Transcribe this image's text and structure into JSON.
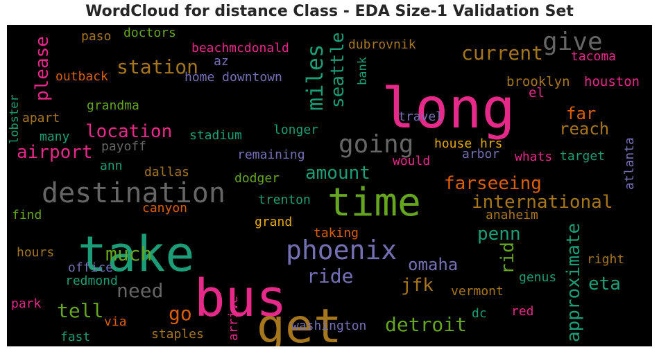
{
  "title": "WordCloud for distance Class - EDA Size-1 Validation Set",
  "palette": {
    "pink": "#e7298a",
    "green": "#1b9e77",
    "olive": "#66a61e",
    "gold": "#a6761d",
    "purple": "#7570b3",
    "orange": "#d95f02",
    "gray": "#666666",
    "yellow": "#e6ab02",
    "background": "#000000"
  },
  "chart_data": {
    "type": "wordcloud",
    "words": [
      {
        "text": "long",
        "size": 80,
        "color": "pink"
      },
      {
        "text": "bus",
        "size": 74,
        "color": "pink"
      },
      {
        "text": "take",
        "size": 70,
        "color": "green"
      },
      {
        "text": "get",
        "size": 68,
        "color": "gold"
      },
      {
        "text": "time",
        "size": 56,
        "color": "olive"
      },
      {
        "text": "destination",
        "size": 40,
        "color": "gray"
      },
      {
        "text": "phoenix",
        "size": 38,
        "color": "purple"
      },
      {
        "text": "going",
        "size": 36,
        "color": "gray"
      },
      {
        "text": "give",
        "size": 36,
        "color": "gray"
      },
      {
        "text": "miles",
        "size": 32,
        "color": "green"
      },
      {
        "text": "current",
        "size": 28,
        "color": "gold"
      },
      {
        "text": "station",
        "size": 28,
        "color": "gold"
      },
      {
        "text": "seattle",
        "size": 26,
        "color": "green"
      },
      {
        "text": "please",
        "size": 26,
        "color": "pink"
      },
      {
        "text": "much",
        "size": 28,
        "color": "olive"
      },
      {
        "text": "need",
        "size": 28,
        "color": "gray"
      },
      {
        "text": "detroit",
        "size": 28,
        "color": "olive"
      },
      {
        "text": "approximate",
        "size": 26,
        "color": "green"
      },
      {
        "text": "international",
        "size": 26,
        "color": "gold"
      },
      {
        "text": "farseeing",
        "size": 26,
        "color": "orange"
      },
      {
        "text": "amount",
        "size": 26,
        "color": "green"
      },
      {
        "text": "location",
        "size": 26,
        "color": "pink"
      },
      {
        "text": "airport",
        "size": 26,
        "color": "pink"
      },
      {
        "text": "tell",
        "size": 28,
        "color": "olive"
      },
      {
        "text": "go",
        "size": 28,
        "color": "orange"
      },
      {
        "text": "ride",
        "size": 28,
        "color": "purple"
      },
      {
        "text": "jfk",
        "size": 26,
        "color": "gold"
      },
      {
        "text": "omaha",
        "size": 24,
        "color": "purple"
      },
      {
        "text": "penn",
        "size": 26,
        "color": "green"
      },
      {
        "text": "rid",
        "size": 26,
        "color": "olive"
      },
      {
        "text": "eta",
        "size": 26,
        "color": "green"
      },
      {
        "text": "far",
        "size": 24,
        "color": "orange"
      },
      {
        "text": "reach",
        "size": 24,
        "color": "gold"
      },
      {
        "text": "houston",
        "size": 19,
        "color": "pink"
      },
      {
        "text": "brooklyn",
        "size": 19,
        "color": "gold"
      },
      {
        "text": "el",
        "size": 19,
        "color": "pink"
      },
      {
        "text": "tacoma",
        "size": 18,
        "color": "pink"
      },
      {
        "text": "atlanta",
        "size": 18,
        "color": "purple"
      },
      {
        "text": "target",
        "size": 18,
        "color": "green"
      },
      {
        "text": "whats",
        "size": 18,
        "color": "pink"
      },
      {
        "text": "arbor",
        "size": 18,
        "color": "purple"
      },
      {
        "text": "house",
        "size": 18,
        "color": "yellow"
      },
      {
        "text": "hrs",
        "size": 18,
        "color": "yellow"
      },
      {
        "text": "would",
        "size": 18,
        "color": "pink"
      },
      {
        "text": "travel",
        "size": 18,
        "color": "purple"
      },
      {
        "text": "bank",
        "size": 17,
        "color": "green"
      },
      {
        "text": "dubrovnik",
        "size": 18,
        "color": "gold"
      },
      {
        "text": "beachmcdonald",
        "size": 18,
        "color": "pink"
      },
      {
        "text": "az",
        "size": 18,
        "color": "purple"
      },
      {
        "text": "home downtown",
        "size": 18,
        "color": "purple"
      },
      {
        "text": "doctors",
        "size": 18,
        "color": "olive"
      },
      {
        "text": "paso",
        "size": 18,
        "color": "gold"
      },
      {
        "text": "outback",
        "size": 18,
        "color": "orange"
      },
      {
        "text": "lobster",
        "size": 17,
        "color": "green"
      },
      {
        "text": "apart",
        "size": 18,
        "color": "gold"
      },
      {
        "text": "grandma",
        "size": 18,
        "color": "olive"
      },
      {
        "text": "many",
        "size": 18,
        "color": "green"
      },
      {
        "text": "stadium",
        "size": 18,
        "color": "green"
      },
      {
        "text": "longer",
        "size": 18,
        "color": "green"
      },
      {
        "text": "payoff",
        "size": 18,
        "color": "gray"
      },
      {
        "text": "remaining",
        "size": 18,
        "color": "purple"
      },
      {
        "text": "ann",
        "size": 18,
        "color": "green"
      },
      {
        "text": "dallas",
        "size": 18,
        "color": "gold"
      },
      {
        "text": "dodger",
        "size": 18,
        "color": "olive"
      },
      {
        "text": "trenton",
        "size": 18,
        "color": "green"
      },
      {
        "text": "canyon",
        "size": 18,
        "color": "orange"
      },
      {
        "text": "find",
        "size": 18,
        "color": "olive"
      },
      {
        "text": "grand",
        "size": 18,
        "color": "yellow"
      },
      {
        "text": "taking",
        "size": 18,
        "color": "orange"
      },
      {
        "text": "anaheim",
        "size": 18,
        "color": "gold"
      },
      {
        "text": "hours",
        "size": 18,
        "color": "gold"
      },
      {
        "text": "office",
        "size": 18,
        "color": "purple"
      },
      {
        "text": "redmond",
        "size": 18,
        "color": "green"
      },
      {
        "text": "right",
        "size": 18,
        "color": "gold"
      },
      {
        "text": "genus",
        "size": 18,
        "color": "green"
      },
      {
        "text": "vermont",
        "size": 18,
        "color": "gold"
      },
      {
        "text": "park",
        "size": 18,
        "color": "pink"
      },
      {
        "text": "arrive",
        "size": 18,
        "color": "pink"
      },
      {
        "text": "dc",
        "size": 18,
        "color": "green"
      },
      {
        "text": "red",
        "size": 18,
        "color": "pink"
      },
      {
        "text": "via",
        "size": 18,
        "color": "orange"
      },
      {
        "text": "washington",
        "size": 18,
        "color": "purple"
      },
      {
        "text": "fast",
        "size": 18,
        "color": "green"
      },
      {
        "text": "staples",
        "size": 18,
        "color": "gold"
      }
    ]
  }
}
